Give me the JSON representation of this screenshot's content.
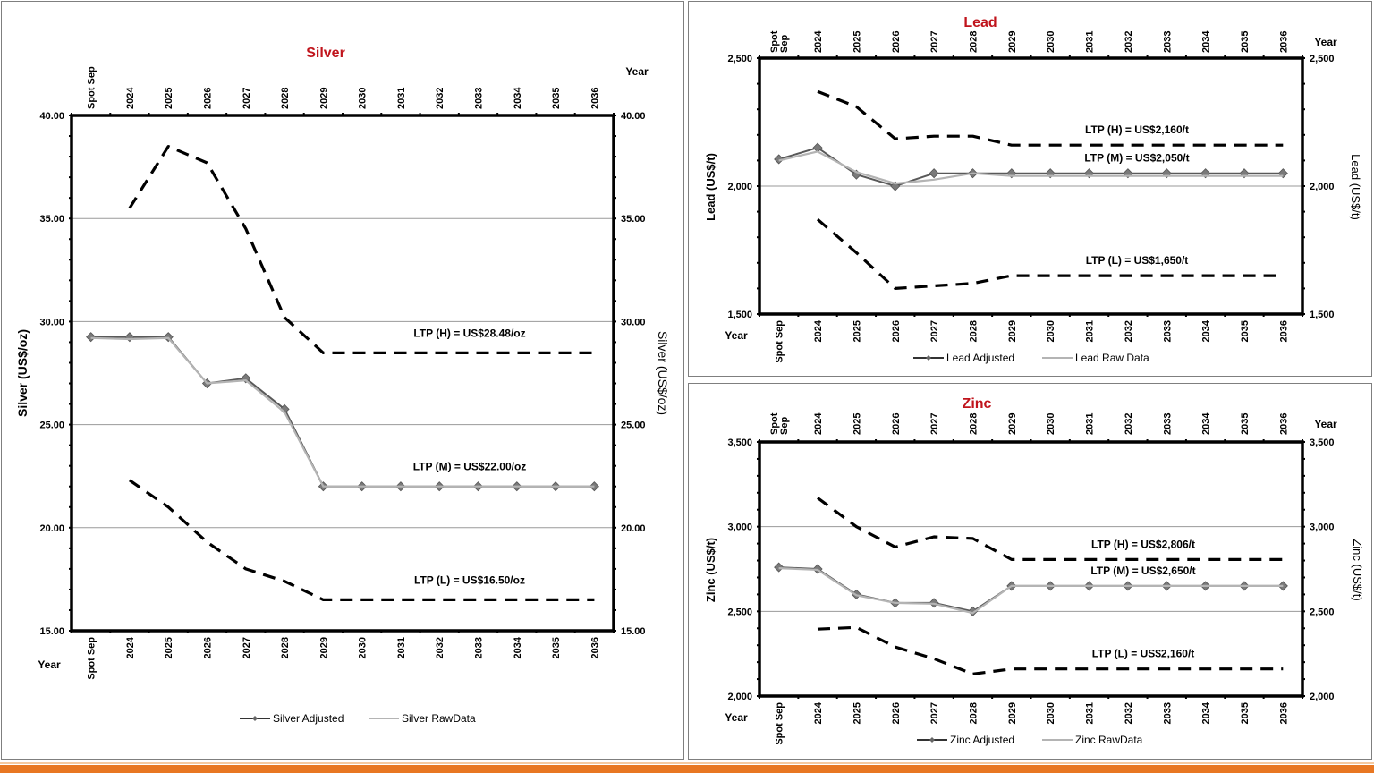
{
  "chart_data": [
    {
      "id": "silver",
      "type": "line",
      "title": "Silver",
      "ylabel": "Silver (US$/oz)",
      "ylabel_right": "Silver (US$/oz)",
      "xlabel": "Year",
      "categories": [
        "Spot Sep",
        "2024",
        "2025",
        "2026",
        "2027",
        "2028",
        "2029",
        "2030",
        "2031",
        "2032",
        "2033",
        "2034",
        "2035",
        "2036"
      ],
      "ylim": [
        15,
        40
      ],
      "yticks": [
        15,
        20,
        25,
        30,
        35,
        40
      ],
      "ytick_labels": [
        "15.00",
        "20.00",
        "25.00",
        "30.00",
        "35.00",
        "40.00"
      ],
      "grid": true,
      "series": [
        {
          "name": "Silver Adjusted",
          "style": "solid-dark-markers",
          "values": [
            29.25,
            29.25,
            29.25,
            27.0,
            27.25,
            25.75,
            22.0,
            22.0,
            22.0,
            22.0,
            22.0,
            22.0,
            22.0,
            22.0
          ]
        },
        {
          "name": "Silver RawData",
          "style": "solid-light",
          "values": [
            29.2,
            29.15,
            29.2,
            27.0,
            27.15,
            25.6,
            22.0,
            22.0,
            22.0,
            22.0,
            22.0,
            22.0,
            22.0,
            22.0
          ]
        },
        {
          "name": "LTP (H)",
          "style": "dashed",
          "values": [
            null,
            35.5,
            38.5,
            37.7,
            34.5,
            30.2,
            28.48,
            28.48,
            28.48,
            28.48,
            28.48,
            28.48,
            28.48,
            28.48
          ]
        },
        {
          "name": "LTP (L)",
          "style": "dashed",
          "values": [
            null,
            22.3,
            21.0,
            19.3,
            18.0,
            17.4,
            16.5,
            16.5,
            16.5,
            16.5,
            16.5,
            16.5,
            16.5,
            16.5
          ]
        }
      ],
      "annotations": [
        {
          "text": "LTP (H) = US$28.48/oz",
          "y": 28.48
        },
        {
          "text": "LTP (M) = US$22.00/oz",
          "y": 22.0
        },
        {
          "text": "LTP (L) = US$16.50/oz",
          "y": 16.5
        }
      ],
      "legend": {
        "position": "bottom",
        "items": [
          "Silver Adjusted",
          "Silver RawData"
        ]
      }
    },
    {
      "id": "lead",
      "type": "line",
      "title": "Lead",
      "ylabel": "Lead (US$/t)",
      "ylabel_right": "Lead (US$/t)",
      "xlabel": "Year",
      "categories": [
        "Spot Sep",
        "2024",
        "2025",
        "2026",
        "2027",
        "2028",
        "2029",
        "2030",
        "2031",
        "2032",
        "2033",
        "2034",
        "2035",
        "2036"
      ],
      "categories_top": [
        "Spot\nSep",
        "2024",
        "2025",
        "2026",
        "2027",
        "2028",
        "2029",
        "2030",
        "2031",
        "2032",
        "2033",
        "2034",
        "2035",
        "2036"
      ],
      "ylim": [
        1500,
        2500
      ],
      "yticks": [
        1500,
        2000,
        2500
      ],
      "ytick_labels": [
        "1,500",
        "2,000",
        "2,500"
      ],
      "grid": true,
      "series": [
        {
          "name": "Lead Adjusted",
          "style": "solid-dark-markers",
          "values": [
            2105,
            2150,
            2045,
            2000,
            2050,
            2050,
            2050,
            2050,
            2050,
            2050,
            2050,
            2050,
            2050,
            2050
          ]
        },
        {
          "name": "Lead Raw Data",
          "style": "solid-light",
          "values": [
            2100,
            2135,
            2055,
            2010,
            2025,
            2050,
            2040,
            2040,
            2040,
            2040,
            2040,
            2040,
            2040,
            2040
          ]
        },
        {
          "name": "LTP (H)",
          "style": "dashed",
          "values": [
            null,
            2370,
            2310,
            2185,
            2195,
            2195,
            2160,
            2160,
            2160,
            2160,
            2160,
            2160,
            2160,
            2160
          ]
        },
        {
          "name": "LTP (L)",
          "style": "dashed",
          "values": [
            null,
            1870,
            1740,
            1600,
            1610,
            1620,
            1650,
            1650,
            1650,
            1650,
            1650,
            1650,
            1650,
            1650
          ]
        }
      ],
      "annotations": [
        {
          "text": "LTP (H) = US$2,160/t",
          "y": 2160
        },
        {
          "text": "LTP (M) = US$2,050/t",
          "y": 2050
        },
        {
          "text": "LTP (L) = US$1,650/t",
          "y": 1650
        }
      ],
      "legend": {
        "position": "bottom",
        "items": [
          "Lead Adjusted",
          "Lead Raw Data"
        ]
      }
    },
    {
      "id": "zinc",
      "type": "line",
      "title": "Zinc",
      "ylabel": "Zinc (US$/t)",
      "ylabel_right": "Zinc (US$/t)",
      "xlabel": "Year",
      "categories": [
        "Spot Sep",
        "2024",
        "2025",
        "2026",
        "2027",
        "2028",
        "2029",
        "2030",
        "2031",
        "2032",
        "2033",
        "2034",
        "2035",
        "2036"
      ],
      "categories_top": [
        "Spot\nSep",
        "2024",
        "2025",
        "2026",
        "2027",
        "2028",
        "2029",
        "2030",
        "2031",
        "2032",
        "2033",
        "2034",
        "2035",
        "2036"
      ],
      "ylim": [
        2000,
        3500
      ],
      "yticks": [
        2000,
        2500,
        3000,
        3500
      ],
      "ytick_labels": [
        "2,000",
        "2,500",
        "3,000",
        "3,500"
      ],
      "grid": true,
      "series": [
        {
          "name": "Zinc Adjusted",
          "style": "solid-dark-markers",
          "values": [
            2760,
            2750,
            2600,
            2550,
            2550,
            2500,
            2650,
            2650,
            2650,
            2650,
            2650,
            2650,
            2650,
            2650
          ]
        },
        {
          "name": "Zinc RawData",
          "style": "solid-light",
          "values": [
            2755,
            2745,
            2595,
            2550,
            2545,
            2490,
            2650,
            2650,
            2650,
            2650,
            2650,
            2650,
            2650,
            2650
          ]
        },
        {
          "name": "LTP (H)",
          "style": "dashed",
          "values": [
            null,
            3170,
            3000,
            2880,
            2940,
            2930,
            2806,
            2806,
            2806,
            2806,
            2806,
            2806,
            2806,
            2806
          ]
        },
        {
          "name": "LTP (L)",
          "style": "dashed",
          "values": [
            null,
            2395,
            2405,
            2290,
            2220,
            2130,
            2160,
            2160,
            2160,
            2160,
            2160,
            2160,
            2160,
            2160
          ]
        }
      ],
      "annotations": [
        {
          "text": "LTP (H) = US$2,806/t",
          "y": 2806
        },
        {
          "text": "LTP (M) = US$2,650/t",
          "y": 2650
        },
        {
          "text": "LTP (L) = US$2,160/t",
          "y": 2160
        }
      ],
      "legend": {
        "position": "bottom",
        "items": [
          "Zinc Adjusted",
          "Zinc RawData"
        ]
      }
    }
  ],
  "colors": {
    "title": "#c0141c",
    "adjusted": "#595959",
    "raw": "#b4b4b4",
    "ltp": "#000000",
    "grid": "#9a9a9a",
    "footer": "#e87722"
  }
}
